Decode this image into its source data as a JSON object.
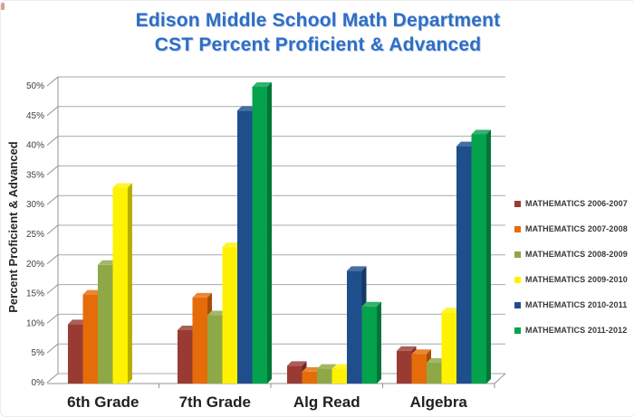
{
  "title": {
    "line1": "Edison Middle School Math Department",
    "line2": "CST Percent Proficient & Advanced",
    "color": "#2E6EC4"
  },
  "chart_data": {
    "type": "bar",
    "style": "3d-column",
    "categories": [
      "6th Grade",
      "7th Grade",
      "Alg Read",
      "Algebra"
    ],
    "series": [
      {
        "name": "MATHEMATICS 2006-2007",
        "color": "#9A3B33",
        "values": [
          10,
          9,
          3,
          5.5
        ]
      },
      {
        "name": "MATHEMATICS 2007-2008",
        "color": "#E66C09",
        "values": [
          15,
          14.5,
          2,
          5
        ]
      },
      {
        "name": "MATHEMATICS 2008-2009",
        "color": "#8EA846",
        "values": [
          20,
          11.5,
          2.5,
          3.5
        ]
      },
      {
        "name": "MATHEMATICS 2009-2010",
        "color": "#FFF200",
        "values": [
          33,
          23,
          2.5,
          12
        ]
      },
      {
        "name": "MATHEMATICS 2010-2011",
        "color": "#1F4E8C",
        "values": [
          0,
          46,
          19,
          40
        ]
      },
      {
        "name": "MATHEMATICS 2011-2012",
        "color": "#04A24D",
        "values": [
          0,
          50,
          13,
          42
        ]
      }
    ],
    "xlabel": "",
    "ylabel": "Percent Proficient & Advanced",
    "ylim": [
      0,
      50
    ],
    "ytick_step": 5,
    "ytick_labels": [
      "0%",
      "5%",
      "10%",
      "15%",
      "20%",
      "25%",
      "30%",
      "35%",
      "40%",
      "45%",
      "50%"
    ],
    "grid": true,
    "legend_position": "right",
    "axis_color": "#8F9396",
    "gridline_color": "#A6A9AC",
    "tick_label_color": "#404040",
    "category_label_color": "#1f1f1f"
  }
}
